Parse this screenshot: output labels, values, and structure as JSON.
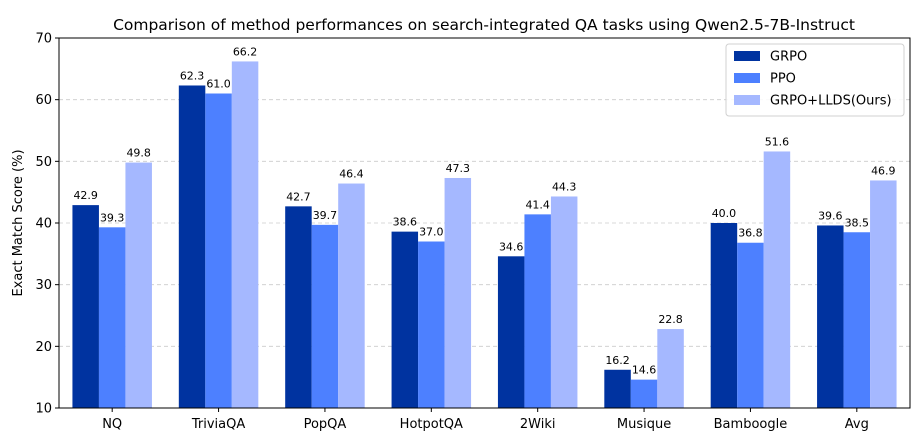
{
  "chart_data": {
    "type": "bar",
    "title": "Comparison of method performances on search-integrated QA tasks using Qwen2.5-7B-Instruct",
    "xlabel": "",
    "ylabel": "Exact Match Score (%)",
    "ylim": [
      10,
      70
    ],
    "yticks": [
      10,
      20,
      30,
      40,
      50,
      60,
      70
    ],
    "grid": "y-dashed",
    "legend_position": "top-right",
    "categories": [
      "NQ",
      "TriviaQA",
      "PopQA",
      "HotpotQA",
      "2Wiki",
      "Musique",
      "Bamboogle",
      "Avg"
    ],
    "series": [
      {
        "name": "GRPO",
        "color": "#0033a0",
        "values": [
          42.9,
          62.3,
          42.7,
          38.6,
          34.6,
          16.2,
          40.0,
          39.6
        ],
        "labels": [
          "42.9",
          "62.3",
          "42.7",
          "38.6",
          "34.6",
          "16.2",
          "40.0",
          "39.6"
        ]
      },
      {
        "name": "PPO",
        "color": "#4d80ff",
        "values": [
          39.3,
          61.0,
          39.7,
          37.0,
          41.4,
          14.6,
          36.8,
          38.5
        ],
        "labels": [
          "39.3",
          "61.0",
          "39.7",
          "37.0",
          "41.4",
          "14.6",
          "36.8",
          "38.5"
        ]
      },
      {
        "name": "GRPO+LLDS(Ours)",
        "color": "#a5b8ff",
        "values": [
          49.8,
          66.2,
          46.4,
          47.3,
          44.3,
          22.8,
          51.6,
          46.9
        ],
        "labels": [
          "49.8",
          "66.2",
          "46.4",
          "47.3",
          "44.3",
          "22.8",
          "51.6",
          "46.9"
        ]
      }
    ]
  }
}
